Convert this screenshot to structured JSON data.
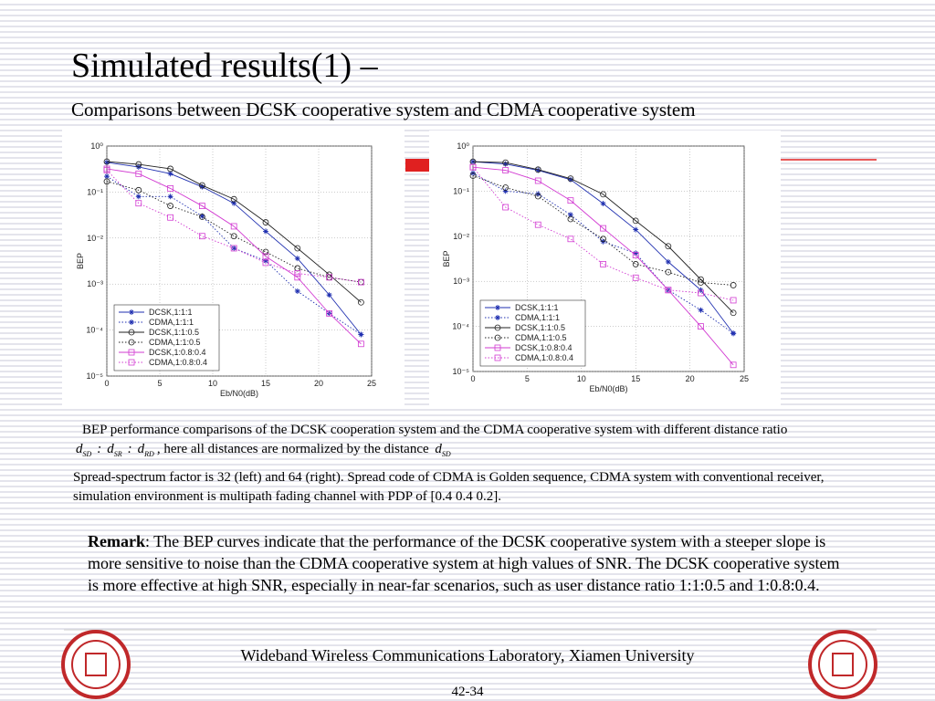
{
  "title": "Simulated results(1) –",
  "subtitle": "Comparisons between DCSK cooperative system and  CDMA cooperative system",
  "chart_data": [
    {
      "type": "line",
      "xlabel": "Eb/N0(dB)",
      "ylabel": "BEP",
      "log_y": true,
      "grid": true,
      "legend": "lower left",
      "xlim": [
        0,
        25
      ],
      "xticks": [
        0,
        5,
        10,
        15,
        20,
        25
      ],
      "ylim": [
        1e-05,
        1
      ],
      "yticks": [
        {
          "value": 1,
          "label": "10⁰"
        },
        {
          "value": 0.1,
          "label": "10⁻¹"
        },
        {
          "value": 0.01,
          "label": "10⁻²"
        },
        {
          "value": 0.001,
          "label": "10⁻³"
        },
        {
          "value": 0.0001,
          "label": "10⁻⁴"
        },
        {
          "value": 1e-05,
          "label": "10⁻⁵"
        }
      ],
      "x": [
        0,
        3,
        6,
        9,
        12,
        15,
        18,
        21,
        24
      ],
      "series": [
        {
          "name": "DCSK,1:1:1",
          "color": "#1f2fb0",
          "line_style": "solid",
          "marker": "star",
          "values": [
            0.44,
            0.35,
            0.25,
            0.13,
            0.057,
            0.014,
            0.0036,
            0.00058,
            8e-05
          ]
        },
        {
          "name": "CDMA,1:1:1",
          "color": "#1f2fb0",
          "line_style": "dotted",
          "marker": "star",
          "values": [
            0.22,
            0.08,
            0.08,
            0.03,
            0.006,
            0.0032,
            0.0007,
            0.00023,
            8e-05
          ]
        },
        {
          "name": "DCSK,1:1:0.5",
          "color": "#222222",
          "line_style": "solid",
          "marker": "circle",
          "values": [
            0.46,
            0.4,
            0.32,
            0.14,
            0.07,
            0.022,
            0.006,
            0.0016,
            0.0004
          ]
        },
        {
          "name": "CDMA,1:1:0.5",
          "color": "#222222",
          "line_style": "dotted",
          "marker": "circle",
          "values": [
            0.17,
            0.11,
            0.05,
            0.029,
            0.011,
            0.005,
            0.0022,
            0.0014,
            0.0011
          ]
        },
        {
          "name": "DCSK,1:0.8:0.4",
          "color": "#d23bd2",
          "line_style": "solid",
          "marker": "square",
          "values": [
            0.32,
            0.25,
            0.12,
            0.05,
            0.018,
            0.004,
            0.0014,
            0.00023,
            5e-05
          ]
        },
        {
          "name": "CDMA,1:0.8:0.4",
          "color": "#d23bd2",
          "line_style": "dotted",
          "marker": "square",
          "values": [
            0.3,
            0.057,
            0.028,
            0.011,
            0.006,
            0.0029,
            0.0017,
            0.0014,
            0.0011
          ]
        }
      ]
    },
    {
      "type": "line",
      "xlabel": "Eb/N0(dB)",
      "ylabel": "BEP",
      "log_y": true,
      "grid": true,
      "legend": "lower left",
      "xlim": [
        0,
        25
      ],
      "xticks": [
        0,
        5,
        10,
        15,
        20,
        25
      ],
      "ylim": [
        1e-05,
        1
      ],
      "yticks": [
        {
          "value": 1,
          "label": "10⁰"
        },
        {
          "value": 0.1,
          "label": "10⁻¹"
        },
        {
          "value": 0.01,
          "label": "10⁻²"
        },
        {
          "value": 0.001,
          "label": "10⁻³"
        },
        {
          "value": 0.0001,
          "label": "10⁻⁴"
        },
        {
          "value": 1e-05,
          "label": "10⁻⁵"
        }
      ],
      "x": [
        0,
        3,
        6,
        9,
        12,
        15,
        18,
        21,
        24
      ],
      "series": [
        {
          "name": "DCSK,1:1:1",
          "color": "#1f2fb0",
          "line_style": "solid",
          "marker": "star",
          "values": [
            0.45,
            0.4,
            0.29,
            0.18,
            0.053,
            0.014,
            0.0027,
            0.00064,
            7e-05
          ]
        },
        {
          "name": "CDMA,1:1:1",
          "color": "#1f2fb0",
          "line_style": "dotted",
          "marker": "star",
          "values": [
            0.25,
            0.1,
            0.087,
            0.03,
            0.0076,
            0.0042,
            0.00064,
            0.00023,
            7e-05
          ]
        },
        {
          "name": "DCSK,1:1:0.5",
          "color": "#222222",
          "line_style": "solid",
          "marker": "circle",
          "values": [
            0.45,
            0.43,
            0.3,
            0.19,
            0.085,
            0.022,
            0.006,
            0.0011,
            0.0002
          ]
        },
        {
          "name": "CDMA,1:1:0.5",
          "color": "#222222",
          "line_style": "dotted",
          "marker": "circle",
          "values": [
            0.22,
            0.12,
            0.077,
            0.024,
            0.0087,
            0.0024,
            0.0016,
            0.00094,
            0.00082
          ]
        },
        {
          "name": "DCSK,1:0.8:0.4",
          "color": "#d23bd2",
          "line_style": "solid",
          "marker": "square",
          "values": [
            0.34,
            0.29,
            0.17,
            0.062,
            0.015,
            0.0038,
            0.00064,
            0.0001,
            1.4e-05
          ]
        },
        {
          "name": "CDMA,1:0.8:0.4",
          "color": "#d23bd2",
          "line_style": "dotted",
          "marker": "square",
          "values": [
            0.34,
            0.044,
            0.018,
            0.0087,
            0.0024,
            0.0012,
            0.00064,
            0.00055,
            0.00038
          ]
        }
      ]
    }
  ],
  "caption": {
    "text1": "BEP performance comparisons of the DCSK cooperation system and the CDMA cooperative system with different distance ratio",
    "ratio": [
      {
        "base": "d",
        "sub": "SD"
      },
      {
        "sep": ":"
      },
      {
        "base": "d",
        "sub": "SR"
      },
      {
        "sep": ":"
      },
      {
        "base": "d",
        "sub": "RD"
      }
    ],
    "text2": ", here all distances are normalized by the distance",
    "norm": {
      "base": "d",
      "sub": "SD"
    }
  },
  "paragraph": "Spread-spectrum factor is 32 (left)  and 64 (right). Spread code of CDMA is Golden sequence, CDMA system with conventional receiver, simulation environment is multipath fading channel with PDP of [0.4 0.4 0.2].",
  "remark": {
    "label": "Remark",
    "text": ": The BEP curves indicate that the performance of the DCSK cooperative system with a steeper slope is more sensitive to noise than the CDMA cooperative system at high values of SNR. The DCSK cooperative system is more effective at high SNR, especially in near-far scenarios, such as user distance ratio 1:1:0.5 and 1:0.8:0.4."
  },
  "footer": {
    "text": "Wideband Wireless Communications Laboratory, Xiamen University",
    "page": "42-34"
  }
}
